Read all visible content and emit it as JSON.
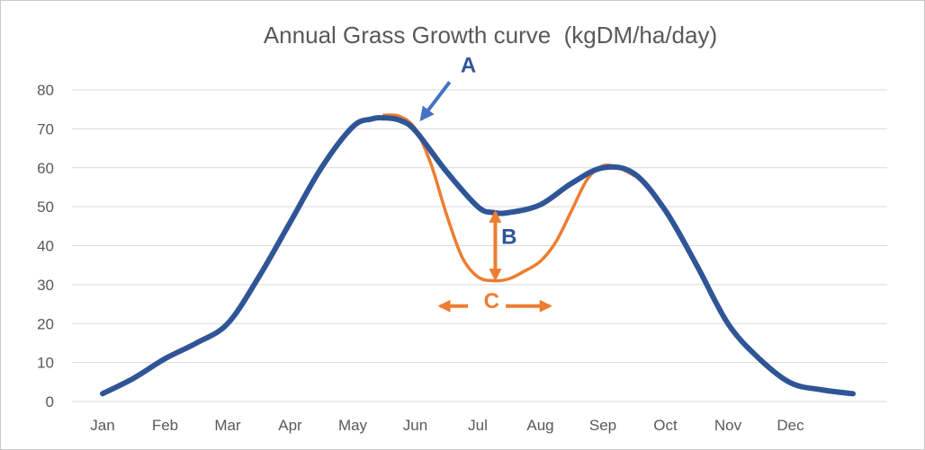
{
  "chart_data": {
    "type": "line",
    "title": "Annual Grass Growth curve  (kgDM/ha/day)",
    "xlabel": "",
    "ylabel": "",
    "categories": [
      "Jan",
      "Feb",
      "Mar",
      "Apr",
      "May",
      "Jun",
      "Jul",
      "Aug",
      "Sep",
      "Oct",
      "Nov",
      "Dec"
    ],
    "ylim": [
      0,
      80
    ],
    "yticks": [
      0,
      10,
      20,
      30,
      40,
      50,
      60,
      70,
      80
    ],
    "grid": true,
    "legend": "none",
    "series": [
      {
        "color": "#2f5597",
        "x": [
          0,
          0.5,
          1,
          1.5,
          2,
          2.5,
          3,
          3.5,
          4,
          4.3,
          4.5,
          4.75,
          5,
          5.5,
          6,
          6.25,
          6.5,
          7,
          7.5,
          8,
          8.5,
          9,
          9.5,
          10,
          10.5,
          11,
          11.5,
          12
        ],
        "values": [
          2,
          6,
          11,
          15,
          20,
          32,
          46,
          60,
          70.5,
          72.5,
          72.8,
          72.2,
          69.5,
          59,
          50,
          48.5,
          48.5,
          50.5,
          56,
          60,
          58.5,
          49,
          35,
          20,
          11,
          4.8,
          3,
          2
        ]
      },
      {
        "color": "#ed7d31",
        "x": [
          4.5,
          4.75,
          5,
          5.25,
          5.5,
          5.75,
          6,
          6.25,
          6.5,
          6.75,
          7,
          7.25,
          7.5,
          7.75,
          8,
          8.25,
          8.5
        ],
        "values": [
          73.5,
          73.2,
          70,
          61,
          48,
          37,
          32,
          31,
          31.5,
          33.5,
          36,
          41,
          49,
          57,
          60.5,
          60,
          58
        ]
      }
    ],
    "annotations": [
      {
        "label": "A",
        "color": "#2f5597",
        "x": 5.85,
        "y": 84.5,
        "arrow": {
          "from": [
            5.55,
            82
          ],
          "to": [
            5.1,
            72.5
          ]
        }
      },
      {
        "label": "B",
        "color": "#2f5597",
        "x": 6.5,
        "y": 40.5,
        "arrow": {
          "from": [
            6.28,
            48.5
          ],
          "to": [
            6.28,
            31.5
          ],
          "color": "#ed7d31",
          "double": true
        }
      },
      {
        "label": "C",
        "color": "#ed7d31",
        "x": 6.22,
        "y": 24,
        "arrow": {
          "from": [
            5.4,
            24.5
          ],
          "to": [
            7.15,
            24.5
          ],
          "color": "#ed7d31",
          "double": true,
          "split": true
        }
      }
    ]
  }
}
